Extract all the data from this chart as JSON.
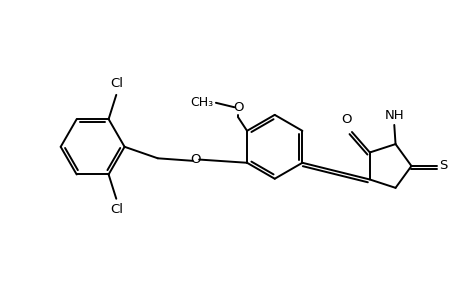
{
  "bg_color": "#ffffff",
  "line_color": "#000000",
  "line_width": 1.4,
  "font_size": 9.5,
  "figsize": [
    4.6,
    3.0
  ],
  "dpi": 100,
  "xlim": [
    -4.0,
    3.2
  ],
  "ylim": [
    -1.8,
    1.8
  ]
}
